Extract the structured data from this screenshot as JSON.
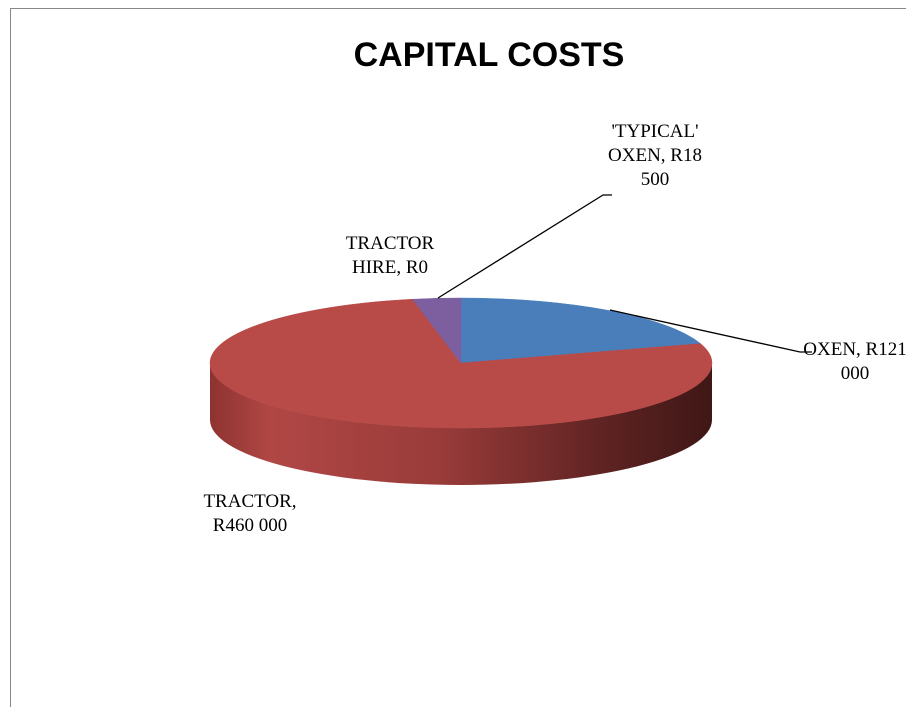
{
  "chart_data": {
    "type": "pie3d",
    "title": "CAPITAL COSTS",
    "categories": [
      "OXEN",
      "TRACTOR",
      "TRACTOR HIRE",
      "'TYPICAL' OXEN"
    ],
    "values": [
      121000,
      460000,
      0,
      18500
    ],
    "value_labels": [
      "R121 000",
      "R460 000",
      "R0",
      "R18 500"
    ],
    "label_separator": ", ",
    "colors": [
      "#4a7ebb",
      "#b84a47",
      "#8064a2",
      "#7d5fa0"
    ]
  }
}
